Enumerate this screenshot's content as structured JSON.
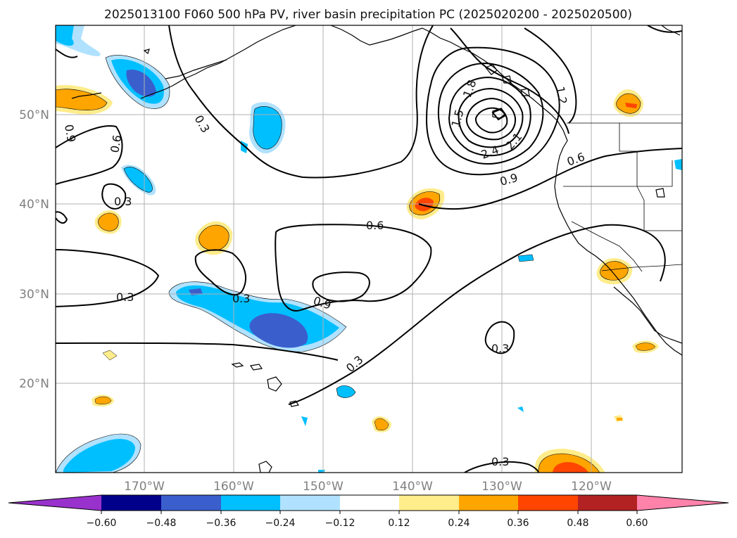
{
  "title": "2025013100 F060 500 hPa PV, river basin precipitation PC (2025020200 - 2025020500)",
  "lat_labels": [
    "50°N",
    "40°N",
    "30°N",
    "20°N"
  ],
  "lon_labels": [
    "170°W",
    "160°W",
    "150°W",
    "140°W",
    "130°W",
    "120°W"
  ],
  "contour_labels": [
    "0.3",
    "0.3",
    "0.3",
    "0.3",
    "0.3",
    "0.3",
    "0.3",
    "0.6",
    "0.6",
    "0.6",
    "0.9",
    "0.9",
    "0.9",
    "1.2",
    "1.5",
    "1.8",
    "2.1",
    "2.4"
  ],
  "colorbar": {
    "ticks": [
      "−0.60",
      "−0.48",
      "−0.36",
      "−0.24",
      "−0.12",
      "0.12",
      "0.24",
      "0.36",
      "0.48",
      "0.60"
    ],
    "colors": [
      "#9932cc",
      "#00008b",
      "#3a5fcd",
      "#00bfff",
      "#b0e2ff",
      "#ffffff",
      "#ffec8b",
      "#ffa500",
      "#ff4500",
      "#b22222",
      "#ff82ab"
    ]
  },
  "colors": {
    "neg_strong": "#3a5fcd",
    "neg_mid": "#00bfff",
    "neg_weak": "#b0e2ff",
    "pos_weak": "#ffec8b",
    "pos_mid": "#ffa500",
    "pos_strong": "#ff4500",
    "pos_stronger": "#b22222"
  }
}
